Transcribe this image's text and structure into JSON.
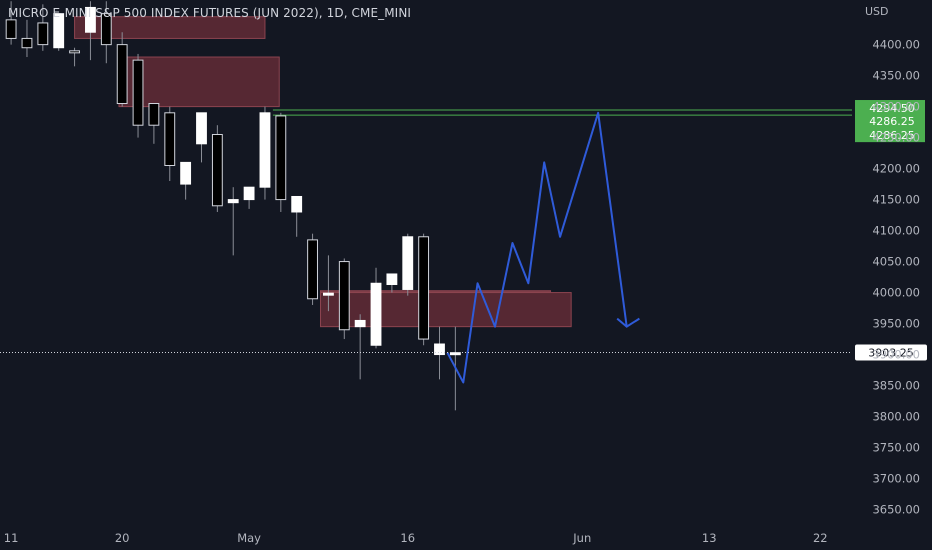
{
  "header": {
    "symbol_title": "MICRO E-MINI S&P 500 INDEX FUTURES (JUN 2022), 1D, CME_MINI",
    "currency": "USD"
  },
  "chart_data": {
    "type": "candlestick",
    "y_axis": {
      "ticks": [
        "4400.00",
        "4350.00",
        "4300.00",
        "4250.00",
        "4200.00",
        "4150.00",
        "4100.00",
        "4050.00",
        "4000.00",
        "3950.00",
        "3900.00",
        "3850.00",
        "3800.00",
        "3750.00",
        "3700.00",
        "3650.00"
      ],
      "range": [
        3625,
        4472
      ]
    },
    "x_axis": {
      "labels": [
        {
          "text": "11",
          "slot": 0
        },
        {
          "text": "20",
          "slot": 7
        },
        {
          "text": "May",
          "slot": 15
        },
        {
          "text": "16",
          "slot": 25
        },
        {
          "text": "Jun",
          "slot": 36
        },
        {
          "text": "13",
          "slot": 44
        },
        {
          "text": "22",
          "slot": 51
        }
      ],
      "range": [
        -0.7,
        53
      ]
    },
    "candles": [
      {
        "o": 4440,
        "h": 4470,
        "l": 4400,
        "c": 4410
      },
      {
        "o": 4410,
        "h": 4440,
        "l": 4380,
        "c": 4395
      },
      {
        "o": 4435,
        "h": 4465,
        "l": 4390,
        "c": 4400
      },
      {
        "o": 4395,
        "h": 4445,
        "l": 4390,
        "c": 4450
      },
      {
        "o": 4390,
        "h": 4395,
        "l": 4365,
        "c": 4388
      },
      {
        "o": 4420,
        "h": 4470,
        "l": 4375,
        "c": 4460
      },
      {
        "o": 4450,
        "h": 4470,
        "l": 4370,
        "c": 4400
      },
      {
        "o": 4400,
        "h": 4420,
        "l": 4300,
        "c": 4305
      },
      {
        "o": 4375,
        "h": 4385,
        "l": 4250,
        "c": 4270
      },
      {
        "o": 4305,
        "h": 4305,
        "l": 4240,
        "c": 4270
      },
      {
        "o": 4290,
        "h": 4300,
        "l": 4180,
        "c": 4205
      },
      {
        "o": 4175,
        "h": 4210,
        "l": 4150,
        "c": 4210
      },
      {
        "o": 4240,
        "h": 4290,
        "l": 4210,
        "c": 4290
      },
      {
        "o": 4255,
        "h": 4270,
        "l": 4130,
        "c": 4140
      },
      {
        "o": 4145,
        "h": 4170,
        "l": 4060,
        "c": 4150
      },
      {
        "o": 4150,
        "h": 4165,
        "l": 4135,
        "c": 4170
      },
      {
        "o": 4170,
        "h": 4300,
        "l": 4150,
        "c": 4290
      },
      {
        "o": 4285,
        "h": 4290,
        "l": 4130,
        "c": 4150
      },
      {
        "o": 4130,
        "h": 4150,
        "l": 4090,
        "c": 4155
      },
      {
        "o": 4085,
        "h": 4095,
        "l": 3980,
        "c": 3990
      },
      {
        "o": 3999,
        "h": 4060,
        "l": 3970,
        "c": 3999
      },
      {
        "o": 4050,
        "h": 4055,
        "l": 3925,
        "c": 3940
      },
      {
        "o": 3945,
        "h": 3965,
        "l": 3860,
        "c": 3955
      },
      {
        "o": 3915,
        "h": 4040,
        "l": 3910,
        "c": 4015
      },
      {
        "o": 4013,
        "h": 4025,
        "l": 4000,
        "c": 4030
      },
      {
        "o": 4005,
        "h": 4095,
        "l": 3995,
        "c": 4090
      },
      {
        "o": 4090,
        "h": 4095,
        "l": 3915,
        "c": 3925
      },
      {
        "o": 3900,
        "h": 3945,
        "l": 3860,
        "c": 3917
      },
      {
        "o": 3900,
        "h": 3945,
        "l": 3810,
        "c": 3903
      }
    ],
    "zones": [
      {
        "x0": 4,
        "x1": 16,
        "y0": 4410,
        "y1": 4445
      },
      {
        "x0": 6.8,
        "x1": 16.9,
        "y0": 4300,
        "y1": 4380
      },
      {
        "x0": 19.5,
        "x1": 35.3,
        "y0": 3945,
        "y1": 4000
      },
      {
        "x0": 19.5,
        "x1": 34,
        "y0": 4001,
        "y1": 4003
      }
    ],
    "levels": [
      {
        "x0": 16.5,
        "price": 4294.5,
        "label": "4294.50",
        "color": "#4caf50"
      },
      {
        "x0": 16.5,
        "price": 4286.25,
        "label": "4286.25",
        "color": "#4caf50"
      },
      {
        "x0": 16.5,
        "price": 4286.25,
        "label": "4286.25",
        "color": "#4caf50"
      }
    ],
    "last_price": {
      "price": 3903.25,
      "label": "3903.25"
    },
    "projection": [
      {
        "x": 27.5,
        "y": 3903
      },
      {
        "x": 28.5,
        "y": 3855
      },
      {
        "x": 29.4,
        "y": 4015
      },
      {
        "x": 30.5,
        "y": 3945
      },
      {
        "x": 31.6,
        "y": 4080
      },
      {
        "x": 32.6,
        "y": 4015
      },
      {
        "x": 33.6,
        "y": 4210
      },
      {
        "x": 34.6,
        "y": 4090
      },
      {
        "x": 37.0,
        "y": 4290
      },
      {
        "x": 38.8,
        "y": 3945
      }
    ],
    "projection_arrow": [
      {
        "x": 38.2,
        "y": 3958
      },
      {
        "x": 38.8,
        "y": 3945
      },
      {
        "x": 39.6,
        "y": 3958
      }
    ],
    "colors": {
      "background": "#131722",
      "bull": "#ffffff",
      "bear": "#000000",
      "wick": "#8b8e97",
      "zone": "#6d2f3a",
      "zone_border": "#8c4450",
      "projection": "#2f5bd9",
      "level_green": "#4caf50",
      "grid_label": "#b2b5be"
    }
  }
}
